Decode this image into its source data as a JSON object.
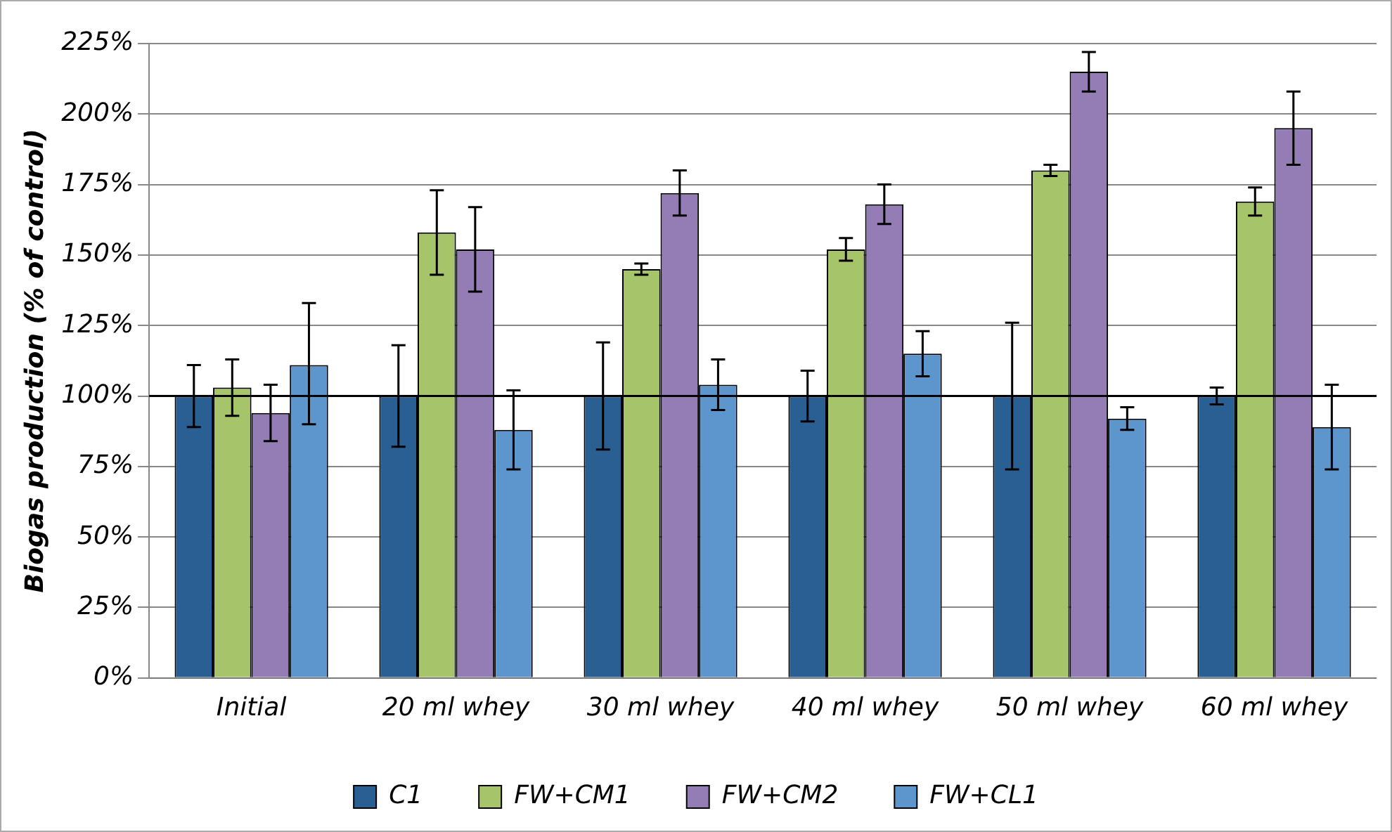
{
  "chart_data": {
    "type": "bar",
    "ylabel": "Biogas production (% of control)",
    "categories": [
      "Initial",
      "20 ml whey",
      "30 ml whey",
      "40 ml whey",
      "50 ml whey",
      "60 ml whey"
    ],
    "series": [
      {
        "name": "C1",
        "color": "#2a5f93",
        "values": [
          100,
          100,
          100,
          100,
          100,
          100
        ],
        "errors": [
          11,
          18,
          19,
          9,
          26,
          3
        ]
      },
      {
        "name": "FW+CM1",
        "color": "#a6c46a",
        "values": [
          103,
          158,
          145,
          152,
          180,
          169
        ],
        "errors": [
          10,
          15,
          2,
          4,
          2,
          5
        ]
      },
      {
        "name": "FW+CM2",
        "color": "#947cb5",
        "values": [
          94,
          152,
          172,
          168,
          215,
          195
        ],
        "errors": [
          10,
          15,
          8,
          7,
          7,
          13
        ]
      },
      {
        "name": "FW+CL1",
        "color": "#5d96cc",
        "values": [
          111,
          88,
          104,
          115,
          92,
          89
        ],
        "errors": [
          [
            90,
            133
          ],
          14,
          9,
          8,
          4,
          15
        ]
      }
    ],
    "ylim": [
      0,
      225
    ],
    "yticks": [
      {
        "value": 0,
        "label": "0%"
      },
      {
        "value": 25,
        "label": "25%"
      },
      {
        "value": 50,
        "label": "50%"
      },
      {
        "value": 75,
        "label": "75%"
      },
      {
        "value": 100,
        "label": "100%"
      },
      {
        "value": 125,
        "label": "125%"
      },
      {
        "value": 150,
        "label": "150%"
      },
      {
        "value": 175,
        "label": "175%"
      },
      {
        "value": 200,
        "label": "200%"
      },
      {
        "value": 225,
        "label": "225%"
      }
    ],
    "ref_lines": [
      {
        "axis": "y",
        "value": 100,
        "color": "#000000"
      }
    ],
    "grid": "y",
    "legend": "bottom"
  }
}
